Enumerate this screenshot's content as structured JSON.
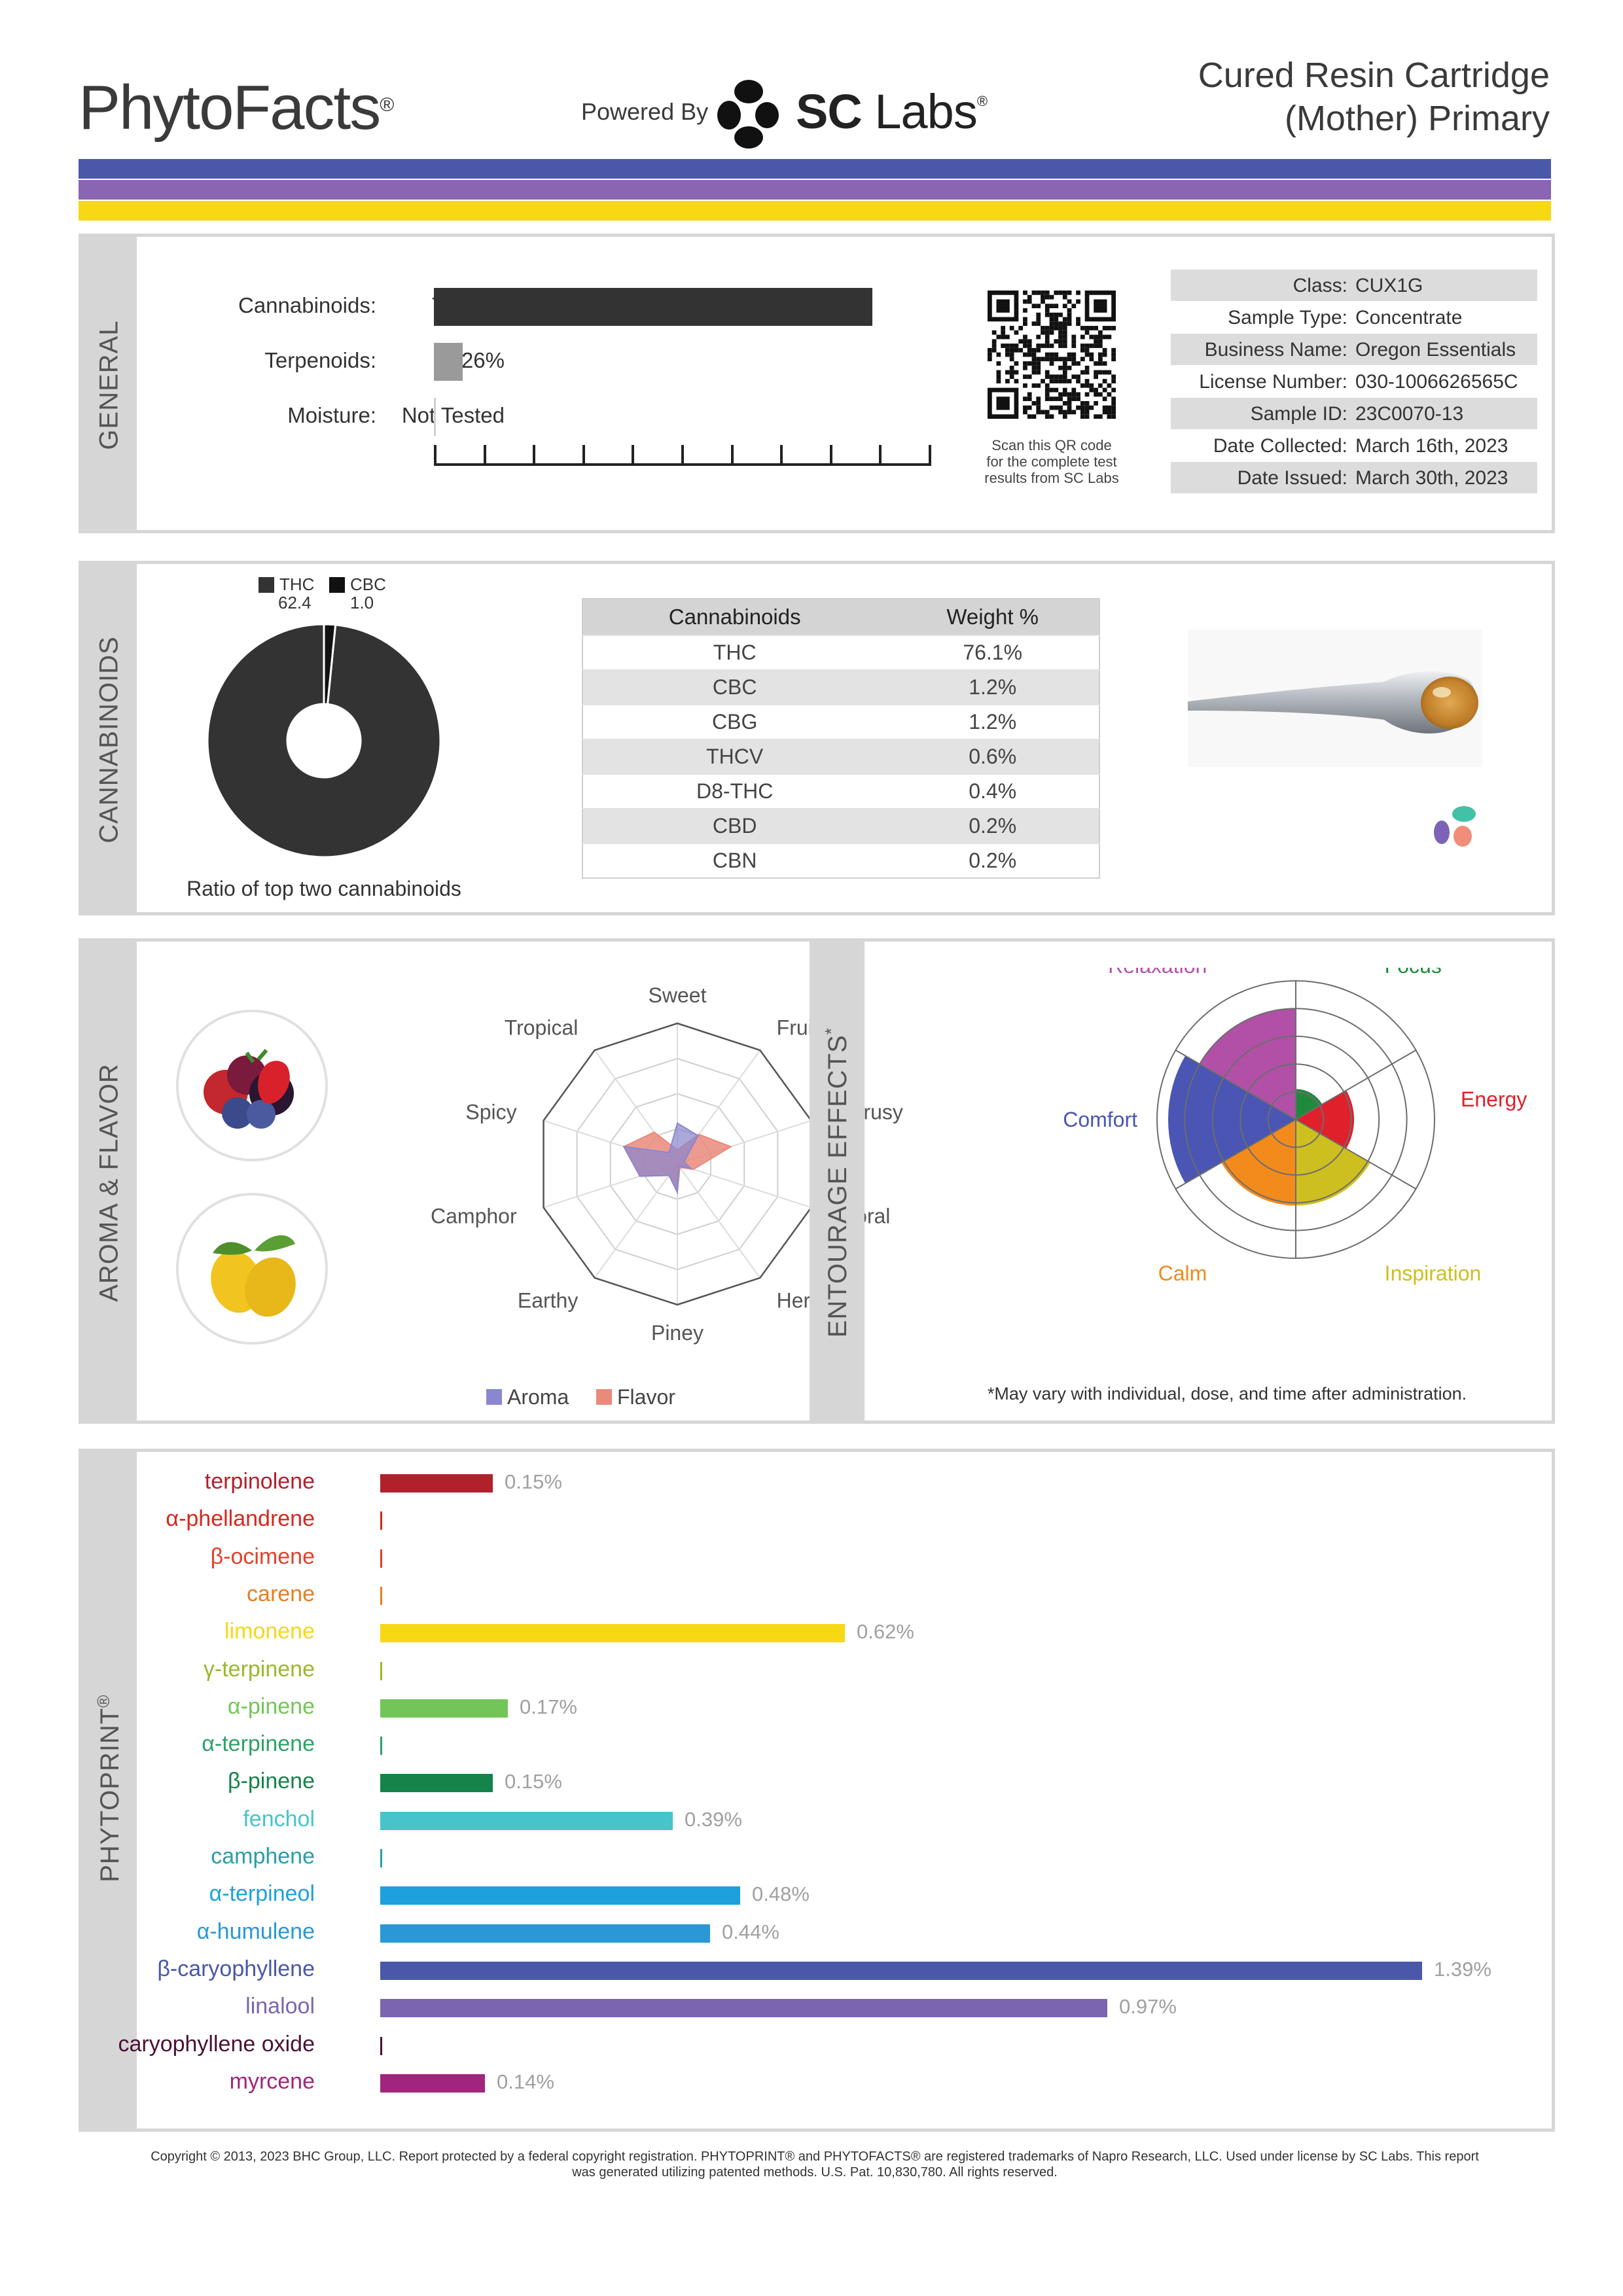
{
  "header": {
    "logo": "PhytoFacts",
    "logo_mark": "®",
    "powered_by": "Powered By",
    "lab_bold": "SC",
    "lab_rest": " Labs",
    "lab_mark": "®",
    "product_line1": "Cured Resin Cartridge",
    "product_line2": "(Mother) Primary",
    "stripe_colors": [
      "#4a58a9",
      "#8a65b2",
      "#f6d814"
    ]
  },
  "general": {
    "tab_label": "GENERAL",
    "rows": [
      {
        "label": "Cannabinoids:",
        "value": "79.79%",
        "fraction": 0.7979,
        "color": "#333333"
      },
      {
        "label": "Terpenoids:",
        "value": "5.26%",
        "fraction": 0.0526,
        "color": "#9a9a9a"
      },
      {
        "label": "Moisture:",
        "value": "Not Tested",
        "fraction": 0,
        "color": "#cccccc"
      }
    ],
    "qr_caption": [
      "Scan this QR code",
      "for the complete test",
      "results from SC Labs"
    ],
    "info": [
      {
        "key": "Class:",
        "value": "CUX1G"
      },
      {
        "key": "Sample Type:",
        "value": "Concentrate"
      },
      {
        "key": "Business Name:",
        "value": "Oregon Essentials"
      },
      {
        "key": "License Number:",
        "value": "030-1006626565C"
      },
      {
        "key": "Sample ID:",
        "value": "23C0070-13"
      },
      {
        "key": "Date Collected:",
        "value": "March 16th, 2023"
      },
      {
        "key": "Date Issued:",
        "value": "March 30th, 2023"
      }
    ]
  },
  "cannabinoids": {
    "tab_label": "CANNABINOIDS",
    "donut_legend": [
      {
        "name": "THC",
        "value": "62.4",
        "num": 62.4
      },
      {
        "name": "CBC",
        "value": "1.0",
        "num": 1.0
      }
    ],
    "donut_caption": "Ratio of top two cannabinoids",
    "table_headers": [
      "Cannabinoids",
      "Weight %"
    ],
    "table_rows": [
      [
        "THC",
        "76.1%"
      ],
      [
        "CBC",
        "1.2%"
      ],
      [
        "CBG",
        "1.2%"
      ],
      [
        "THCV",
        "0.6%"
      ],
      [
        "D8-THC",
        "0.4%"
      ],
      [
        "CBD",
        "0.2%"
      ],
      [
        "CBN",
        "0.2%"
      ]
    ]
  },
  "aroma": {
    "tab_label": "AROMA & FLAVOR",
    "axes": [
      "Sweet",
      "Fruity",
      "Citrusy",
      "Floral",
      "Herbal",
      "Piney",
      "Earthy",
      "Camphor",
      "Spicy",
      "Tropical"
    ],
    "aroma_values": [
      0.29,
      0.25,
      0.05,
      0.1,
      0.02,
      0.2,
      0.1,
      0.28,
      0.4,
      0.1
    ],
    "flavor_values": [
      0.1,
      0.26,
      0.4,
      0.12,
      0.03,
      0.2,
      0.1,
      0.28,
      0.4,
      0.28
    ],
    "legend_aroma": "Aroma",
    "legend_flavor": "Flavor",
    "aroma_color": "#8a86cf",
    "flavor_color": "#e98a7a"
  },
  "entourage": {
    "tab_label": "ENTOURAGE EFFECTS",
    "tab_mark": "*",
    "effects": [
      {
        "name": "Focus",
        "value": 0.22,
        "color": "#1f8a3c"
      },
      {
        "name": "Energy",
        "value": 0.42,
        "color": "#e0202a"
      },
      {
        "name": "Inspiration",
        "value": 0.62,
        "color": "#cdbf1f"
      },
      {
        "name": "Calm",
        "value": 0.62,
        "color": "#f28a1c"
      },
      {
        "name": "Comfort",
        "value": 0.92,
        "color": "#4a55b4"
      },
      {
        "name": "Relaxation",
        "value": 0.8,
        "color": "#b250a8"
      }
    ],
    "note": "*May vary with individual, dose, and time after administration."
  },
  "phytoprint": {
    "tab_label": "PHYTOPRINT",
    "tab_mark": "®",
    "max_value": 1.39,
    "terpenes": [
      {
        "name": "terpinolene",
        "value": 0.15,
        "label": "0.15%",
        "color": "#b0212b"
      },
      {
        "name": "α-phellandrene",
        "value": 0,
        "label": "",
        "color": "#d6281e"
      },
      {
        "name": "β-ocimene",
        "value": 0,
        "label": "",
        "color": "#e2412a"
      },
      {
        "name": "carene",
        "value": 0,
        "label": "",
        "color": "#e67e22"
      },
      {
        "name": "limonene",
        "value": 0.62,
        "label": "0.62%",
        "color": "#f6d814"
      },
      {
        "name": "γ-terpinene",
        "value": 0,
        "label": "",
        "color": "#9ab82d"
      },
      {
        "name": "α-pinene",
        "value": 0.17,
        "label": "0.17%",
        "color": "#72c657"
      },
      {
        "name": "α-terpinene",
        "value": 0,
        "label": "",
        "color": "#2ea267"
      },
      {
        "name": "β-pinene",
        "value": 0.15,
        "label": "0.15%",
        "color": "#16834a"
      },
      {
        "name": "fenchol",
        "value": 0.39,
        "label": "0.39%",
        "color": "#47c4c9"
      },
      {
        "name": "camphene",
        "value": 0,
        "label": "",
        "color": "#2b9ea5"
      },
      {
        "name": "α-terpineol",
        "value": 0.48,
        "label": "0.48%",
        "color": "#1ea0dc"
      },
      {
        "name": "α-humulene",
        "value": 0.44,
        "label": "0.44%",
        "color": "#2a98d5"
      },
      {
        "name": "β-caryophyllene",
        "value": 1.39,
        "label": "1.39%",
        "color": "#4a58a9"
      },
      {
        "name": "linalool",
        "value": 0.97,
        "label": "0.97%",
        "color": "#7b65b0"
      },
      {
        "name": "caryophyllene oxide",
        "value": 0,
        "label": "",
        "color": "#4a1233"
      },
      {
        "name": "myrcene",
        "value": 0.14,
        "label": "0.14%",
        "color": "#a1257e"
      }
    ]
  },
  "copyright": {
    "line1": "Copyright © 2013, 2023 BHC Group, LLC. Report protected by a federal copyright registration. PHYTOPRINT® and PHYTOFACTS® are registered trademarks of Napro Research, LLC. Used under license by SC Labs. This report",
    "line2": "was generated utilizing patented methods. U.S. Pat. 10,830,780. All rights reserved."
  }
}
